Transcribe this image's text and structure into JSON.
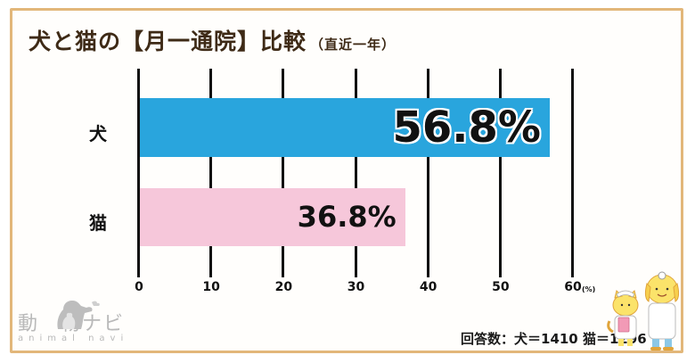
{
  "title": {
    "main": "犬と猫の【月一通院】比較",
    "sub": "（直近一年）"
  },
  "chart_data": {
    "type": "bar",
    "orientation": "horizontal",
    "title": "犬と猫の【月一通院】比較（直近一年）",
    "categories": [
      "犬",
      "猫"
    ],
    "values": [
      56.8,
      36.8
    ],
    "value_labels": [
      "56.8%",
      "36.8%"
    ],
    "colors": [
      "#29a5dd",
      "#f6c7da"
    ],
    "xlabel": "(%)",
    "ylabel": "",
    "xlim": [
      0,
      60
    ],
    "xticks": [
      0,
      10,
      20,
      30,
      40,
      50,
      60
    ],
    "xtick_labels": [
      "0",
      "10",
      "20",
      "30",
      "40",
      "50",
      "60"
    ],
    "grid": true,
    "legend": null
  },
  "axis": {
    "unit": "(%)"
  },
  "footer": {
    "note": "回答数：犬＝1410 猫＝1296"
  },
  "logo": {
    "jp": "動　物ナビ",
    "en": "animal navi"
  },
  "colors": {
    "frame": "#e2b77a",
    "title": "#3e2a16",
    "dog_bar": "#29a5dd",
    "cat_bar": "#f6c7da"
  }
}
